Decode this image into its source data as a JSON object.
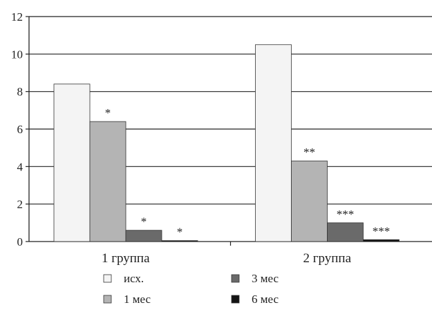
{
  "chart_data": {
    "type": "bar",
    "categories": [
      "1 группа",
      "2 группа"
    ],
    "series": [
      {
        "name": "исх.",
        "values": [
          8.4,
          10.5
        ],
        "color": "#f4f4f4",
        "annotations": [
          "",
          ""
        ]
      },
      {
        "name": "1 мес",
        "values": [
          6.4,
          4.3
        ],
        "color": "#b4b4b4",
        "annotations": [
          "*",
          "**"
        ]
      },
      {
        "name": "3 мес",
        "values": [
          0.6,
          1.0
        ],
        "color": "#6a6a6a",
        "annotations": [
          "*",
          "***"
        ]
      },
      {
        "name": "6 мес",
        "values": [
          0.05,
          0.1
        ],
        "color": "#141414",
        "annotations": [
          "*",
          "***"
        ]
      }
    ],
    "ylim": [
      0,
      12
    ],
    "yticks": [
      0,
      2,
      4,
      6,
      8,
      10,
      12
    ],
    "grid": true,
    "legend_position": "bottom"
  }
}
